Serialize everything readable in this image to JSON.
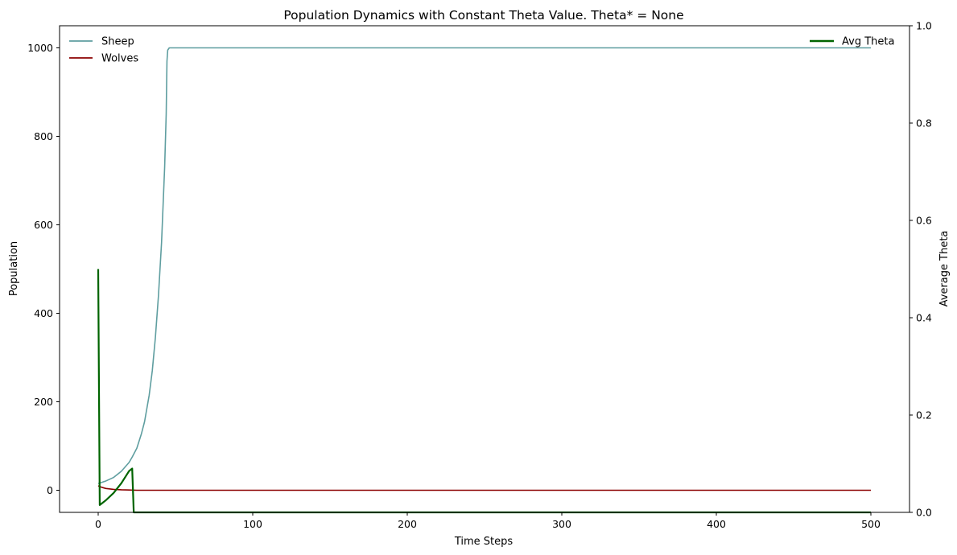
{
  "chart_data": {
    "type": "line",
    "title": "Population Dynamics with Constant Theta Value. Theta* = None",
    "xlabel": "Time Steps",
    "ylabel": "Population",
    "y2label": "Average Theta",
    "xlim": [
      -25,
      525
    ],
    "ylim": [
      -50,
      1050
    ],
    "y2lim": [
      0,
      1
    ],
    "xticks": [
      0,
      100,
      200,
      300,
      400,
      500
    ],
    "yticks": [
      0,
      200,
      400,
      600,
      800,
      1000
    ],
    "y2ticks": [
      0.0,
      0.2,
      0.4,
      0.6,
      0.8,
      1.0
    ],
    "grid": false,
    "legend_left": "top-left",
    "legend_right": "top-right",
    "series": [
      {
        "name": "Sheep",
        "axis": "left",
        "color": "#5f9ea0",
        "points": [
          [
            0,
            15
          ],
          [
            5,
            21
          ],
          [
            10,
            29
          ],
          [
            15,
            43
          ],
          [
            20,
            63
          ],
          [
            22,
            75
          ],
          [
            25,
            95
          ],
          [
            28,
            128
          ],
          [
            30,
            155
          ],
          [
            33,
            215
          ],
          [
            35,
            270
          ],
          [
            37,
            345
          ],
          [
            39,
            440
          ],
          [
            41,
            560
          ],
          [
            43,
            730
          ],
          [
            44,
            850
          ],
          [
            44.5,
            970
          ],
          [
            45,
            995
          ],
          [
            46,
            1000
          ],
          [
            500,
            1000
          ]
        ]
      },
      {
        "name": "Wolves",
        "axis": "left",
        "color": "#8b0000",
        "points": [
          [
            0,
            10
          ],
          [
            2,
            7
          ],
          [
            5,
            4
          ],
          [
            10,
            2
          ],
          [
            15,
            1
          ],
          [
            20,
            0.5
          ],
          [
            25,
            0
          ],
          [
            500,
            0
          ]
        ]
      },
      {
        "name": "Avg Theta",
        "axis": "right",
        "color": "#006400",
        "points": [
          [
            0,
            0.5
          ],
          [
            1,
            0.015
          ],
          [
            5,
            0.025
          ],
          [
            10,
            0.04
          ],
          [
            15,
            0.06
          ],
          [
            20,
            0.085
          ],
          [
            22,
            0.09
          ],
          [
            23,
            0
          ],
          [
            500,
            0
          ]
        ]
      }
    ]
  }
}
